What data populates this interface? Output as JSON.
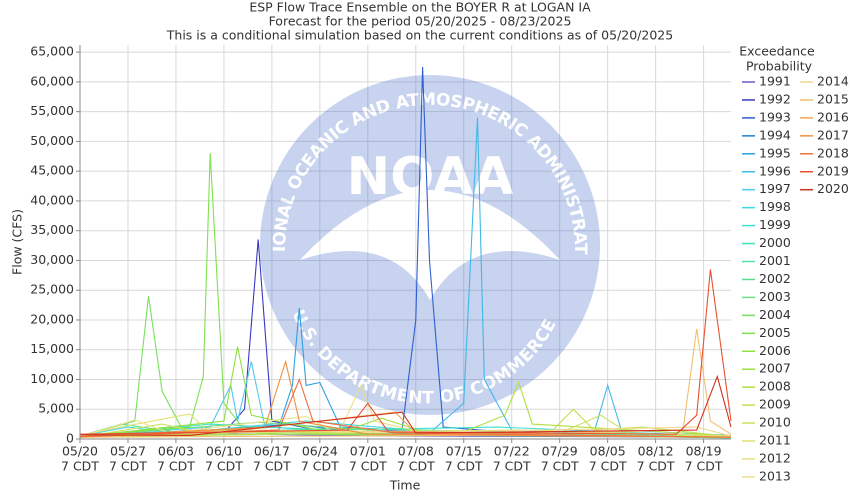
{
  "chart_data": {
    "type": "line",
    "title": [
      "ESP Flow Trace Ensemble on the BOYER R at LOGAN IA",
      "Forecast for the period 05/20/2025 - 08/23/2025",
      "This is a conditional simulation based on the current conditions as of 05/20/2025"
    ],
    "x_label": "Time",
    "y_label": "Flow (CFS)",
    "legend_title": [
      "Exceedance",
      "Probability"
    ],
    "watermark": {
      "logo": "NOAA",
      "ring_top": "NATIONAL OCEANIC AND ATMOSPHERIC ADMINISTRATION",
      "ring_bottom": "U.S. DEPARTMENT OF COMMERCE"
    },
    "grid": true,
    "xlim": [
      "05/20",
      "08/23"
    ],
    "xticks": [
      {
        "value": "05/20",
        "label": [
          "05/20",
          "7 CDT"
        ]
      },
      {
        "value": "05/27",
        "label": [
          "05/27",
          "7 CDT"
        ]
      },
      {
        "value": "06/03",
        "label": [
          "06/03",
          "7 CDT"
        ]
      },
      {
        "value": "06/10",
        "label": [
          "06/10",
          "7 CDT"
        ]
      },
      {
        "value": "06/17",
        "label": [
          "06/17",
          "7 CDT"
        ]
      },
      {
        "value": "06/24",
        "label": [
          "06/24",
          "7 CDT"
        ]
      },
      {
        "value": "07/01",
        "label": [
          "07/01",
          "7 CDT"
        ]
      },
      {
        "value": "07/08",
        "label": [
          "07/08",
          "7 CDT"
        ]
      },
      {
        "value": "07/15",
        "label": [
          "07/15",
          "7 CDT"
        ]
      },
      {
        "value": "07/22",
        "label": [
          "07/22",
          "7 CDT"
        ]
      },
      {
        "value": "07/29",
        "label": [
          "07/29",
          "7 CDT"
        ]
      },
      {
        "value": "08/05",
        "label": [
          "08/05",
          "7 CDT"
        ]
      },
      {
        "value": "08/12",
        "label": [
          "08/12",
          "7 CDT"
        ]
      },
      {
        "value": "08/19",
        "label": [
          "08/19",
          "7 CDT"
        ]
      }
    ],
    "ylim": [
      0,
      66200
    ],
    "yticks": [
      0,
      {
        "value": 5000,
        "label": "5,000"
      },
      {
        "value": 10000,
        "label": "10,000"
      },
      {
        "value": 15000,
        "label": "15,000"
      },
      {
        "value": 20000,
        "label": "20,000"
      },
      {
        "value": 25000,
        "label": "25,000"
      },
      {
        "value": 30000,
        "label": "30,000"
      },
      {
        "value": 35000,
        "label": "35,000"
      },
      {
        "value": 40000,
        "label": "40,000"
      },
      {
        "value": 45000,
        "label": "45,000"
      },
      {
        "value": 50000,
        "label": "50,000"
      },
      {
        "value": 55000,
        "label": "55,000"
      },
      {
        "value": 60000,
        "label": "60,000"
      },
      {
        "value": 65000,
        "label": "65,000"
      }
    ],
    "series": [
      {
        "name": "1991",
        "color": "#6a5acd",
        "x": [
          "05/20",
          "06/01",
          "06/05",
          "06/12",
          "07/05",
          "08/01",
          "08/23"
        ],
        "values": [
          600,
          900,
          1500,
          800,
          500,
          400,
          300
        ]
      },
      {
        "name": "1992",
        "color": "#3838c0",
        "x": [
          "05/20",
          "06/10",
          "06/13",
          "06/15",
          "06/17",
          "06/25",
          "07/20",
          "08/23"
        ],
        "values": [
          700,
          1000,
          5000,
          33500,
          3000,
          1200,
          600,
          400
        ]
      },
      {
        "name": "1993",
        "color": "#2f5fd0",
        "x": [
          "05/20",
          "06/20",
          "07/06",
          "07/08",
          "07/09",
          "07/10",
          "07/12",
          "07/25",
          "08/23"
        ],
        "values": [
          500,
          800,
          1500,
          20000,
          62500,
          30000,
          2000,
          800,
          400
        ]
      },
      {
        "name": "1994",
        "color": "#2080d0",
        "x": [
          "05/20",
          "06/05",
          "06/20",
          "07/01",
          "08/23"
        ],
        "values": [
          400,
          1200,
          2500,
          900,
          300
        ]
      },
      {
        "name": "1995",
        "color": "#30a0e0",
        "x": [
          "05/20",
          "06/18",
          "06/20",
          "06/21",
          "06/22",
          "06/24",
          "06/27",
          "07/20",
          "08/23"
        ],
        "values": [
          600,
          2000,
          9000,
          22000,
          9000,
          9500,
          2000,
          700,
          400
        ]
      },
      {
        "name": "1996",
        "color": "#40b8e8",
        "x": [
          "05/20",
          "07/10",
          "07/15",
          "07/17",
          "07/18",
          "07/22",
          "08/03",
          "08/05",
          "08/07",
          "08/23"
        ],
        "values": [
          500,
          1000,
          6000,
          54000,
          10000,
          1500,
          1000,
          9000,
          1500,
          600
        ]
      },
      {
        "name": "1997",
        "color": "#50c8f0",
        "x": [
          "05/20",
          "06/08",
          "06/11",
          "06/12",
          "06/14",
          "06/16",
          "07/05",
          "08/23"
        ],
        "values": [
          500,
          2000,
          9000,
          3000,
          13000,
          2000,
          900,
          400
        ]
      },
      {
        "name": "1998",
        "color": "#40d8e0",
        "x": [
          "05/20",
          "05/27",
          "06/03",
          "06/22",
          "07/15",
          "08/23"
        ],
        "values": [
          500,
          2000,
          1000,
          3000,
          800,
          300
        ]
      },
      {
        "name": "1999",
        "color": "#40e0d0",
        "x": [
          "05/20",
          "06/08",
          "06/25",
          "07/20",
          "08/23"
        ],
        "values": [
          400,
          2500,
          1500,
          2000,
          400
        ]
      },
      {
        "name": "2000",
        "color": "#40e0b8",
        "x": [
          "05/20",
          "06/01",
          "07/01",
          "08/23"
        ],
        "values": [
          300,
          1200,
          1000,
          200
        ]
      },
      {
        "name": "2001",
        "color": "#50e0a0",
        "x": [
          "05/20",
          "05/26",
          "06/04",
          "06/28",
          "08/23"
        ],
        "values": [
          500,
          2500,
          1000,
          1800,
          300
        ]
      },
      {
        "name": "2002",
        "color": "#60d890",
        "x": [
          "05/20",
          "06/10",
          "07/08",
          "08/23"
        ],
        "values": [
          300,
          1500,
          1000,
          200
        ]
      },
      {
        "name": "2003",
        "color": "#70e080",
        "x": [
          "05/20",
          "06/15",
          "07/05",
          "08/23"
        ],
        "values": [
          400,
          2800,
          1200,
          300
        ]
      },
      {
        "name": "2004",
        "color": "#78e060",
        "x": [
          "05/20",
          "05/28",
          "05/30",
          "06/01",
          "06/04",
          "06/20",
          "08/23"
        ],
        "values": [
          500,
          3000,
          24000,
          8000,
          1500,
          800,
          300
        ]
      },
      {
        "name": "2005",
        "color": "#80e050",
        "x": [
          "05/20",
          "06/05",
          "06/07",
          "06/08",
          "06/10",
          "06/13",
          "07/01",
          "08/23"
        ],
        "values": [
          600,
          2000,
          10500,
          48000,
          6000,
          1500,
          700,
          400
        ]
      },
      {
        "name": "2006",
        "color": "#90e040",
        "x": [
          "05/20",
          "06/10",
          "06/12",
          "06/14",
          "06/25",
          "08/23"
        ],
        "values": [
          400,
          3000,
          15500,
          4000,
          1200,
          300
        ]
      },
      {
        "name": "2007",
        "color": "#a0e040",
        "x": [
          "05/20",
          "06/28",
          "07/03",
          "07/10",
          "08/23"
        ],
        "values": [
          300,
          1500,
          3500,
          900,
          300
        ]
      },
      {
        "name": "2008",
        "color": "#b0e040",
        "x": [
          "05/20",
          "07/15",
          "07/21",
          "07/23",
          "07/25",
          "08/23"
        ],
        "values": [
          400,
          1200,
          4000,
          9500,
          2500,
          500
        ]
      },
      {
        "name": "2009",
        "color": "#c0e050",
        "x": [
          "05/20",
          "07/28",
          "07/31",
          "08/03",
          "08/10",
          "08/23"
        ],
        "values": [
          300,
          1500,
          5000,
          1500,
          2000,
          400
        ]
      },
      {
        "name": "2010",
        "color": "#d0e060",
        "x": [
          "05/20",
          "06/01",
          "06/06",
          "07/29",
          "08/04",
          "08/08",
          "08/23"
        ],
        "values": [
          300,
          2500,
          1200,
          1000,
          4000,
          1000,
          300
        ]
      },
      {
        "name": "2011",
        "color": "#e0e070",
        "x": [
          "05/20",
          "05/25",
          "06/05",
          "06/08",
          "07/22",
          "08/23"
        ],
        "values": [
          600,
          1800,
          4200,
          1000,
          1500,
          500
        ]
      },
      {
        "name": "2012",
        "color": "#e8e080",
        "x": [
          "05/20",
          "06/27",
          "06/30",
          "07/02",
          "07/10",
          "08/23"
        ],
        "values": [
          500,
          1500,
          9000,
          3000,
          800,
          300
        ]
      },
      {
        "name": "2013",
        "color": "#f0e090",
        "x": [
          "05/20",
          "05/28",
          "06/02",
          "06/22",
          "06/26",
          "08/23"
        ],
        "values": [
          400,
          3200,
          1000,
          3800,
          1200,
          300
        ]
      },
      {
        "name": "2014",
        "color": "#f0d890",
        "x": [
          "05/20",
          "06/13",
          "07/12",
          "08/18",
          "08/23"
        ],
        "values": [
          300,
          1500,
          1200,
          2000,
          500
        ]
      },
      {
        "name": "2015",
        "color": "#f0c070",
        "x": [
          "05/20",
          "07/15",
          "08/16",
          "08/18",
          "08/20",
          "08/23"
        ],
        "values": [
          300,
          600,
          1500,
          18500,
          3000,
          800
        ]
      },
      {
        "name": "2016",
        "color": "#f0a850",
        "x": [
          "05/20",
          "06/15",
          "07/05",
          "07/08",
          "08/23"
        ],
        "values": [
          300,
          1800,
          4500,
          1000,
          300
        ]
      },
      {
        "name": "2017",
        "color": "#f09040",
        "x": [
          "05/20",
          "06/16",
          "06/19",
          "06/21",
          "07/01",
          "08/23"
        ],
        "values": [
          400,
          2000,
          13000,
          3000,
          800,
          300
        ]
      },
      {
        "name": "2018",
        "color": "#f07040",
        "x": [
          "05/20",
          "06/18",
          "06/21",
          "06/23",
          "07/05",
          "08/23"
        ],
        "values": [
          400,
          1500,
          10000,
          3000,
          1000,
          300
        ]
      },
      {
        "name": "2019",
        "color": "#e85030",
        "x": [
          "05/20",
          "06/28",
          "07/01",
          "07/04",
          "08/15",
          "08/18",
          "08/20",
          "08/23"
        ],
        "values": [
          800,
          1500,
          6000,
          1200,
          800,
          4000,
          28500,
          3000
        ]
      },
      {
        "name": "2020",
        "color": "#d03020",
        "x": [
          "05/20",
          "06/05",
          "07/06",
          "07/08",
          "08/18",
          "08/21",
          "08/23"
        ],
        "values": [
          700,
          600,
          4500,
          1000,
          1500,
          10500,
          2000
        ]
      }
    ]
  }
}
